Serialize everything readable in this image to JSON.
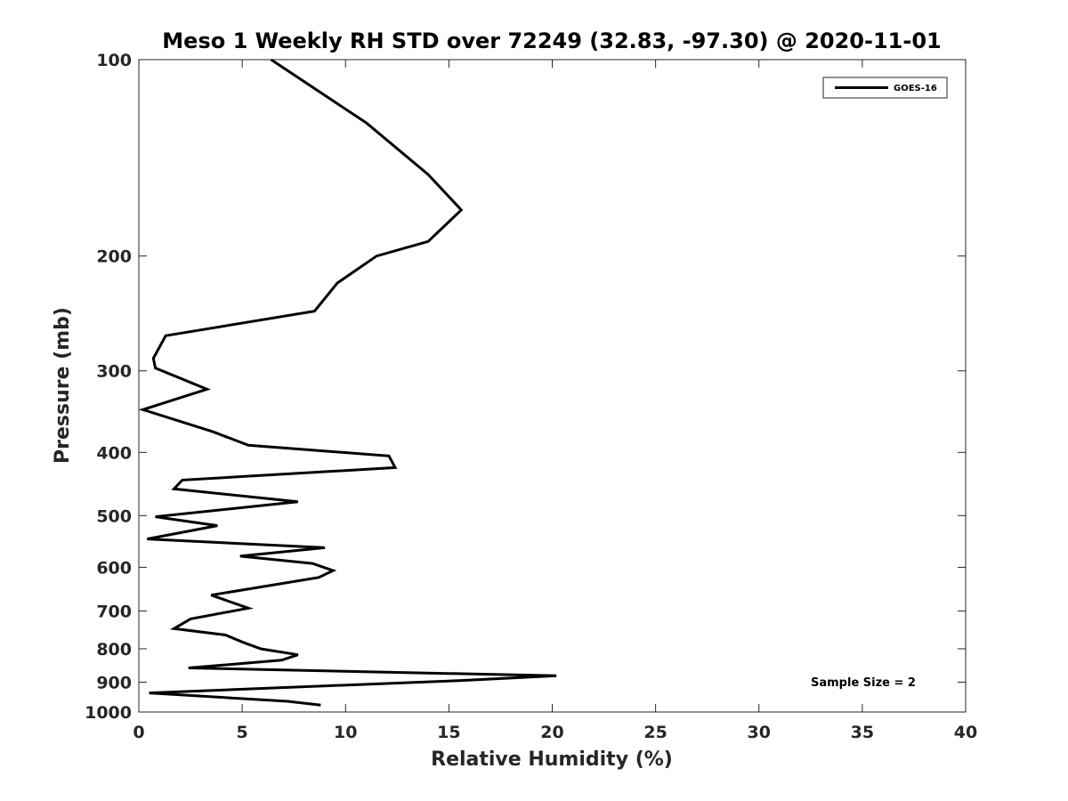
{
  "chart_data": {
    "type": "line",
    "title": "Meso 1 Weekly RH STD over 72249 (32.83, -97.30) @ 2020-11-01",
    "xlabel": "Relative Humidity (%)",
    "ylabel": "Pressure (mb)",
    "xlim": [
      0,
      40
    ],
    "ylim": [
      100,
      1000
    ],
    "y_scale": "log",
    "y_reversed": true,
    "x_ticks": [
      0,
      5,
      10,
      15,
      20,
      25,
      30,
      35,
      40
    ],
    "y_ticks": [
      100,
      200,
      300,
      400,
      500,
      600,
      700,
      800,
      900,
      1000
    ],
    "grid": false,
    "legend_position": "top-right",
    "annotation": "Sample Size = 2",
    "series": [
      {
        "name": "GOES-16",
        "color": "#000000",
        "x": [
          6.4,
          11.0,
          14.0,
          15.6,
          14.0,
          11.5,
          9.6,
          8.5,
          1.3,
          0.7,
          0.8,
          3.3,
          0.2,
          3.6,
          5.3,
          12.1,
          12.4,
          2.1,
          1.7,
          7.7,
          0.8,
          3.8,
          0.4,
          9.0,
          4.9,
          8.4,
          9.4,
          8.7,
          3.5,
          5.3,
          2.5,
          1.7,
          4.2,
          5.0,
          5.9,
          7.7,
          6.9,
          2.4,
          20.2,
          15.5,
          0.5,
          7.2,
          8.8
        ],
        "y": [
          100,
          125,
          150,
          170,
          190,
          200,
          220,
          243,
          265,
          287,
          297,
          320,
          344,
          372,
          390,
          405,
          422,
          441,
          455,
          476,
          502,
          518,
          543,
          560,
          577,
          592,
          607,
          622,
          662,
          693,
          720,
          745,
          762,
          781,
          800,
          817,
          833,
          856,
          880,
          895,
          935,
          963,
          976
        ]
      }
    ]
  }
}
